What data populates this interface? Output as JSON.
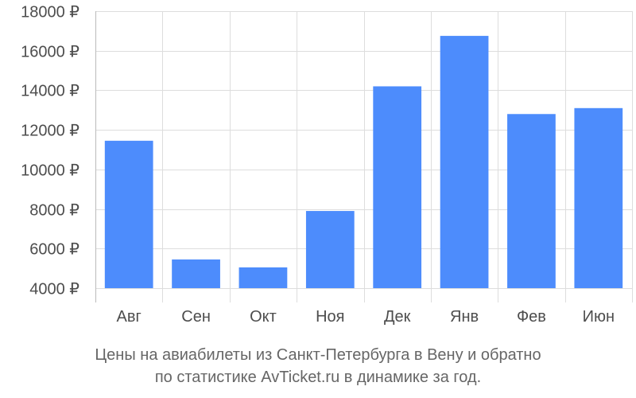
{
  "chart_data": {
    "type": "bar",
    "categories": [
      "Авг",
      "Сен",
      "Окт",
      "Ноя",
      "Дек",
      "Янв",
      "Фев",
      "Июн"
    ],
    "values": [
      11450,
      5450,
      5050,
      7900,
      14200,
      16750,
      12800,
      13100
    ],
    "y_ticks": [
      4000,
      6000,
      8000,
      10000,
      12000,
      14000,
      16000,
      18000
    ],
    "y_tick_labels": [
      "4000 ₽",
      "6000 ₽",
      "8000 ₽",
      "10000 ₽",
      "12000 ₽",
      "14000 ₽",
      "16000 ₽",
      "18000 ₽"
    ],
    "ylim": [
      4000,
      18000
    ],
    "grid": true,
    "bar_color": "#4d8cfc"
  },
  "caption": {
    "line1": "Цены на авиабилеты из Санкт-Петербурга в Вену и обратно",
    "line2": "по статистике AvTicket.ru в динамике за год."
  }
}
